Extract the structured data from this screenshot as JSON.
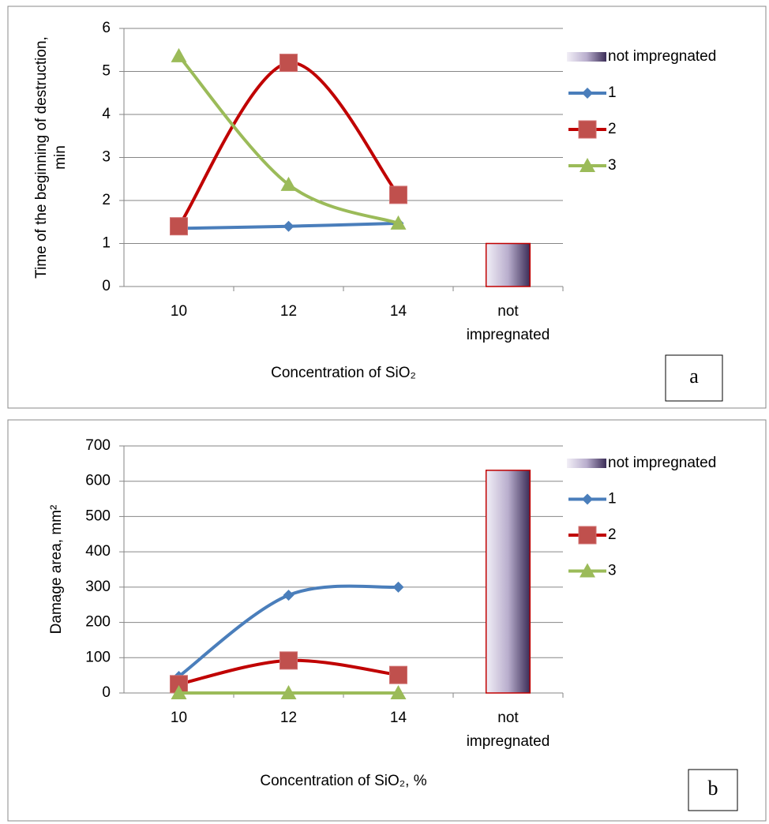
{
  "chart_data": [
    {
      "type": "line",
      "panel_label": "a",
      "xlabel": "Concentration of  SiO₂",
      "ylabel_lines": [
        "Time of the beginning of destruction,",
        "min"
      ],
      "categories": [
        "10",
        "12",
        "14",
        "not impregnated"
      ],
      "ylim": [
        0,
        6
      ],
      "yticks": [
        0,
        1,
        2,
        3,
        4,
        5,
        6
      ],
      "grid": true,
      "legend": "right",
      "series": [
        {
          "name": "not impregnated",
          "type": "bar",
          "values": [
            null,
            null,
            null,
            1.0
          ]
        },
        {
          "name": "1",
          "color": "#4a7ebb",
          "marker": "diamond",
          "values": [
            1.35,
            1.4,
            1.47,
            null
          ]
        },
        {
          "name": "2",
          "color": "#c00000",
          "marker": "square",
          "values": [
            1.4,
            5.2,
            2.13,
            null
          ]
        },
        {
          "name": "3",
          "color": "#9bbb59",
          "marker": "triangle",
          "values": [
            5.36,
            2.37,
            1.47,
            null
          ]
        }
      ]
    },
    {
      "type": "line",
      "panel_label": "b",
      "xlabel": "Concentration of SiO₂, %",
      "ylabel_lines": [
        "Damage area, mm²"
      ],
      "categories": [
        "10",
        "12",
        "14",
        "not impregnated"
      ],
      "ylim": [
        0,
        700
      ],
      "yticks": [
        0,
        100,
        200,
        300,
        400,
        500,
        600,
        700
      ],
      "grid": true,
      "legend": "right",
      "series": [
        {
          "name": "not impregnated",
          "type": "bar",
          "values": [
            null,
            null,
            null,
            631
          ]
        },
        {
          "name": "1",
          "color": "#4a7ebb",
          "marker": "diamond",
          "values": [
            47,
            277,
            300,
            null
          ]
        },
        {
          "name": "2",
          "color": "#c00000",
          "marker": "square",
          "values": [
            25,
            92,
            51,
            null
          ]
        },
        {
          "name": "3",
          "color": "#9bbb59",
          "marker": "triangle",
          "values": [
            0,
            0,
            0,
            null
          ]
        }
      ]
    }
  ]
}
